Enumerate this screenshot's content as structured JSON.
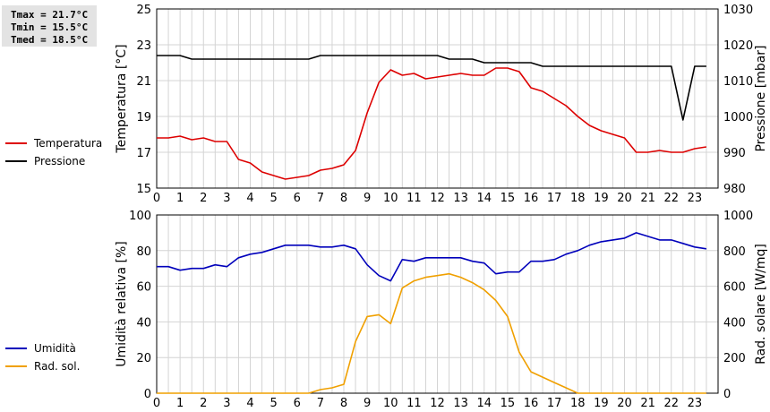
{
  "stats": {
    "tmax": "Tmax = 21.7°C",
    "tmin": "Tmin = 15.5°C",
    "tmed": "Tmed = 18.5°C"
  },
  "colors": {
    "temperature": "#dd0000",
    "pressure": "#000000",
    "humidity": "#0000bb",
    "radiation": "#f0a000",
    "grid": "#d4d4d4"
  },
  "chart_data": [
    {
      "type": "line",
      "x_ticks": [
        "0",
        "1",
        "2",
        "3",
        "4",
        "5",
        "6",
        "7",
        "8",
        "9",
        "10",
        "11",
        "12",
        "13",
        "14",
        "15",
        "16",
        "17",
        "18",
        "19",
        "20",
        "21",
        "22",
        "23"
      ],
      "xlim": [
        0,
        24
      ],
      "ylabel_left": "Temperatura [°C]",
      "ylabel_right": "Pressione [mbar]",
      "ylim_left": [
        15,
        25
      ],
      "ylim_right": [
        980,
        1030
      ],
      "yticks_left": [
        "15",
        "17",
        "19",
        "21",
        "23",
        "25"
      ],
      "yticks_right": [
        "980",
        "990",
        "1000",
        "1010",
        "1020",
        "1030"
      ],
      "grid": true,
      "series": [
        {
          "name": "Temperatura",
          "axis": "left",
          "x": [
            0,
            0.5,
            1,
            1.5,
            2,
            2.5,
            3,
            3.5,
            4,
            4.5,
            5,
            5.5,
            6,
            6.5,
            7,
            7.5,
            8,
            8.5,
            9,
            9.5,
            10,
            10.5,
            11,
            11.5,
            12,
            12.5,
            13,
            13.5,
            14,
            14.5,
            15,
            15.5,
            16,
            16.5,
            17,
            17.5,
            18,
            18.5,
            19,
            19.5,
            20,
            20.5,
            21,
            21.5,
            22,
            22.5,
            23,
            23.5
          ],
          "y": [
            17.8,
            17.8,
            17.9,
            17.7,
            17.8,
            17.6,
            17.6,
            16.6,
            16.4,
            15.9,
            15.7,
            15.5,
            15.6,
            15.7,
            16.0,
            16.1,
            16.3,
            17.1,
            19.2,
            20.9,
            21.6,
            21.3,
            21.4,
            21.1,
            21.2,
            21.3,
            21.4,
            21.3,
            21.3,
            21.7,
            21.7,
            21.5,
            20.6,
            20.4,
            20.0,
            19.6,
            19.0,
            18.5,
            18.2,
            18.0,
            17.8,
            17.0,
            17.0,
            17.1,
            17.0,
            17.0,
            17.2,
            17.3
          ]
        },
        {
          "name": "Pressione",
          "axis": "right",
          "x": [
            0,
            1,
            1.5,
            2,
            3,
            4,
            5,
            6,
            6.5,
            7,
            8,
            9,
            10,
            11,
            12,
            12.5,
            13,
            13.5,
            14,
            15,
            15.5,
            16,
            16.5,
            17,
            18,
            19,
            20,
            21,
            22,
            22.5,
            23,
            23.5
          ],
          "y": [
            1017,
            1017,
            1016,
            1016,
            1016,
            1016,
            1016,
            1016,
            1016,
            1017,
            1017,
            1017,
            1017,
            1017,
            1017,
            1016,
            1016,
            1016,
            1015,
            1015,
            1015,
            1015,
            1014,
            1014,
            1014,
            1014,
            1014,
            1014,
            1014,
            999,
            1014,
            1014
          ]
        }
      ]
    },
    {
      "type": "line",
      "x_ticks": [
        "0",
        "1",
        "2",
        "3",
        "4",
        "5",
        "6",
        "7",
        "8",
        "9",
        "10",
        "11",
        "12",
        "13",
        "14",
        "15",
        "16",
        "17",
        "18",
        "19",
        "20",
        "21",
        "22",
        "23"
      ],
      "xlim": [
        0,
        24
      ],
      "ylabel_left": "Umidità relativa [%]",
      "ylabel_right": "Rad. solare [W/mq]",
      "ylim_left": [
        0,
        100
      ],
      "ylim_right": [
        0,
        1000
      ],
      "yticks_left": [
        "0",
        "20",
        "40",
        "60",
        "80",
        "100"
      ],
      "yticks_right": [
        "0",
        "200",
        "400",
        "600",
        "800",
        "1000"
      ],
      "grid": true,
      "series": [
        {
          "name": "Umidità",
          "axis": "left",
          "x": [
            0,
            0.5,
            1,
            1.5,
            2,
            2.5,
            3,
            3.5,
            4,
            4.5,
            5,
            5.5,
            6,
            6.5,
            7,
            7.5,
            8,
            8.5,
            9,
            9.5,
            10,
            10.5,
            11,
            11.5,
            12,
            12.5,
            13,
            13.5,
            14,
            14.5,
            15,
            15.5,
            16,
            16.5,
            17,
            17.5,
            18,
            18.5,
            19,
            19.5,
            20,
            20.5,
            21,
            21.5,
            22,
            22.5,
            23,
            23.5
          ],
          "y": [
            71,
            71,
            69,
            70,
            70,
            72,
            71,
            76,
            78,
            79,
            81,
            83,
            83,
            83,
            82,
            82,
            83,
            81,
            72,
            66,
            63,
            75,
            74,
            76,
            76,
            76,
            76,
            74,
            73,
            67,
            68,
            68,
            74,
            74,
            75,
            78,
            80,
            83,
            85,
            86,
            87,
            90,
            88,
            86,
            86,
            84,
            82,
            81
          ]
        },
        {
          "name": "Rad. sol.",
          "axis": "right",
          "x": [
            0,
            0.5,
            1,
            1.5,
            2,
            2.5,
            3,
            3.5,
            4,
            4.5,
            5,
            5.5,
            6,
            6.5,
            7,
            7.5,
            8,
            8.5,
            9,
            9.5,
            10,
            10.5,
            11,
            11.5,
            12,
            12.5,
            13,
            13.5,
            14,
            14.5,
            15,
            15.5,
            16,
            16.5,
            17,
            17.5,
            18,
            18.5,
            19,
            19.5,
            20,
            20.5,
            21,
            21.5,
            22,
            22.5,
            23,
            23.5
          ],
          "y": [
            0,
            0,
            0,
            0,
            0,
            0,
            0,
            0,
            0,
            0,
            0,
            0,
            0,
            0,
            20,
            30,
            50,
            290,
            430,
            440,
            390,
            590,
            630,
            650,
            660,
            670,
            650,
            620,
            580,
            520,
            430,
            230,
            120,
            90,
            60,
            30,
            0,
            0,
            0,
            0,
            0,
            0,
            0,
            0,
            0,
            0,
            0,
            0
          ]
        }
      ]
    }
  ]
}
